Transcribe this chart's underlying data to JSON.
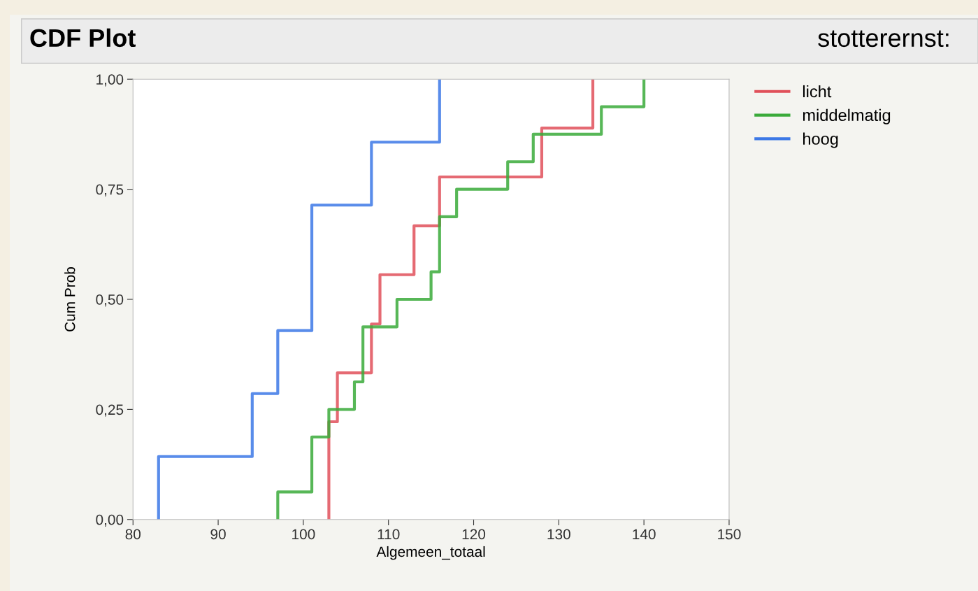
{
  "chart_data": {
    "type": "step",
    "title": "CDF Plot",
    "xlabel": "Algemeen_totaal",
    "ylabel": "Cum Prob",
    "legend_title": "stotterernst:",
    "legend": "right",
    "grid": false,
    "marker": "none",
    "line_style": "solid",
    "xlim": [
      80,
      150
    ],
    "xticks": [
      80,
      90,
      100,
      110,
      120,
      130,
      140,
      150
    ],
    "ylim": [
      0,
      1
    ],
    "yticks": [
      {
        "value": 0,
        "label": "0,00"
      },
      {
        "value": 0.25,
        "label": "0,25"
      },
      {
        "value": 0.5,
        "label": "0,50"
      },
      {
        "value": 0.75,
        "label": "0,75"
      },
      {
        "value": 1,
        "label": "1,00"
      }
    ],
    "series": [
      {
        "name": "licht",
        "color": "#e0505a",
        "x": [
          103,
          103,
          104,
          108,
          109,
          113,
          116,
          128,
          134
        ],
        "values": [
          0,
          0.222,
          0.333,
          0.444,
          0.556,
          0.667,
          0.778,
          0.889,
          1.0
        ]
      },
      {
        "name": "middelmatig",
        "color": "#3aaa3a",
        "x": [
          97,
          97,
          101,
          103,
          106,
          107,
          111,
          115,
          116,
          118,
          124,
          127,
          135,
          140
        ],
        "values": [
          0,
          0.0625,
          0.1875,
          0.25,
          0.3125,
          0.4375,
          0.5,
          0.5625,
          0.6875,
          0.75,
          0.8125,
          0.875,
          0.9375,
          1.0
        ]
      },
      {
        "name": "hoog",
        "color": "#3c78e6",
        "x": [
          83,
          83,
          94,
          97,
          101,
          108,
          116
        ],
        "values": [
          0,
          0.143,
          0.286,
          0.429,
          0.714,
          0.857,
          1.0
        ]
      }
    ]
  }
}
